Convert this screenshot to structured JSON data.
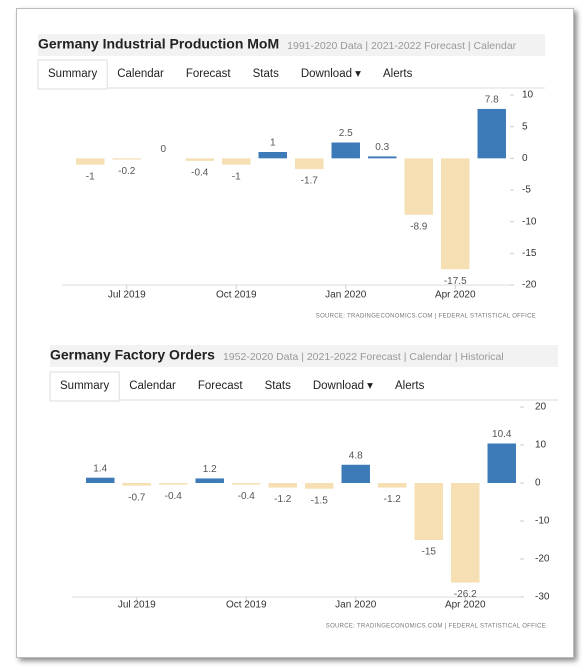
{
  "chart_data": [
    {
      "type": "bar",
      "title": "Germany Industrial Production MoM",
      "subtitle": "1991-2020 Data | 2021-2022 Forecast | Calendar",
      "tabs": [
        "Summary",
        "Calendar",
        "Forecast",
        "Stats",
        "Download ▾",
        "Alerts"
      ],
      "categories": [
        null,
        "Jul 2019",
        null,
        null,
        "Oct 2019",
        null,
        null,
        "Jan 2020",
        null,
        null,
        "Apr 2020",
        null
      ],
      "values": [
        -1,
        -0.2,
        0,
        -0.4,
        -1,
        1,
        -1.7,
        2.5,
        0.3,
        -8.9,
        -17.5,
        7.8
      ],
      "positive_color": "#3d7ab8",
      "negative_color": "#f5dfb3",
      "ylim": [
        -20,
        10
      ],
      "yticks": [
        -20,
        -15,
        -10,
        -5,
        0,
        5,
        10
      ],
      "source": "SOURCE: TRADINGECONOMICS.COM | FEDERAL STATISTICAL OFFICE"
    },
    {
      "type": "bar",
      "title": "Germany Factory Orders",
      "subtitle": "1952-2020 Data | 2021-2022 Forecast | Calendar | Historical",
      "tabs": [
        "Summary",
        "Calendar",
        "Forecast",
        "Stats",
        "Download ▾",
        "Alerts"
      ],
      "categories": [
        null,
        "Jul 2019",
        null,
        null,
        "Oct 2019",
        null,
        null,
        "Jan 2020",
        null,
        null,
        "Apr 2020",
        null
      ],
      "values": [
        1.4,
        -0.7,
        -0.4,
        1.2,
        -0.4,
        -1.2,
        -1.5,
        4.8,
        -1.2,
        -15,
        -26.2,
        10.4
      ],
      "positive_color": "#3d7ab8",
      "negative_color": "#f5dfb3",
      "ylim": [
        -30,
        20
      ],
      "yticks": [
        -30,
        -20,
        -10,
        0,
        10,
        20
      ],
      "source": "SOURCE: TRADINGECONOMICS.COM | FEDERAL STATISTICAL OFFICE"
    }
  ]
}
